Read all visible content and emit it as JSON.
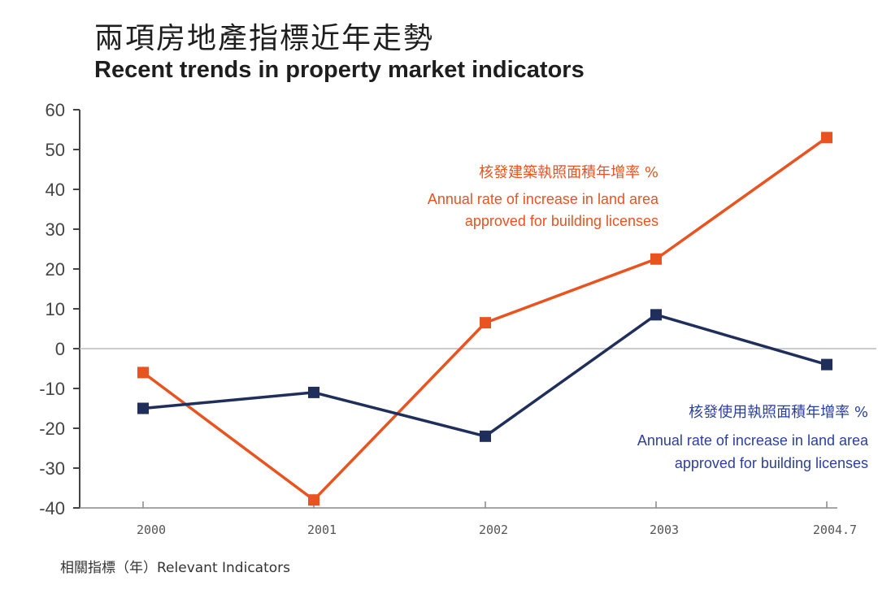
{
  "header": {
    "title_zh": "兩項房地產指標近年走勢",
    "title_en": "Recent trends in property market indicators"
  },
  "footer": {
    "label": "相關指標（年）Relevant Indicators"
  },
  "colors": {
    "series_land": "#e8531f",
    "series_use": "#1f2e5a",
    "label_land": "#e8531f",
    "label_use": "#2b3f9e",
    "axis": "#444444"
  },
  "chart_data": {
    "type": "line",
    "title": "Recent trends in property market indicators",
    "x": [
      "2000",
      "2001",
      "2002",
      "2003",
      "2004.7"
    ],
    "ylim": [
      -40,
      60
    ],
    "yticks": [
      60,
      50,
      40,
      30,
      20,
      10,
      0,
      -10,
      -20,
      -30,
      -40
    ],
    "grid": false,
    "series": [
      {
        "name_zh": "核發建築執照面積年增率 %",
        "name": "Annual rate of increase in land area approved for building licenses",
        "values": [
          -6,
          -38,
          6.5,
          22.5,
          53
        ]
      },
      {
        "name_zh": "核發使用執照面積年增率 %",
        "name": "Annual rate of increase in land area approved for building licenses",
        "values": [
          -15,
          -11,
          -22,
          8.5,
          -4
        ]
      }
    ]
  }
}
